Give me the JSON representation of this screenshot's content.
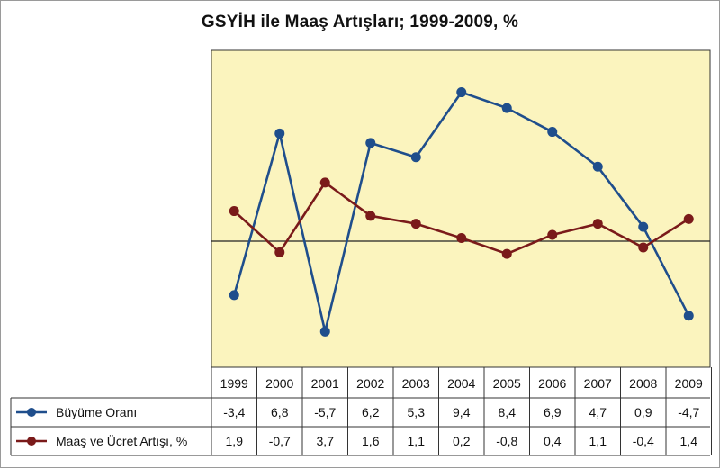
{
  "chart_data": {
    "type": "line",
    "title": "GSYİH ile Maaş Artışları; 1999-2009, %",
    "categories": [
      "1999",
      "2000",
      "2001",
      "2002",
      "2003",
      "2004",
      "2005",
      "2006",
      "2007",
      "2008",
      "2009"
    ],
    "series": [
      {
        "name": "Büyüme Oranı",
        "color": "#1f4e8c",
        "values": [
          -3.4,
          6.8,
          -5.7,
          6.2,
          5.3,
          9.4,
          8.4,
          6.9,
          4.7,
          0.9,
          -4.7
        ]
      },
      {
        "name": "Maaş ve Ücret Artışı, %",
        "color": "#7a1a1a",
        "values": [
          1.9,
          -0.7,
          3.7,
          1.6,
          1.1,
          0.2,
          -0.8,
          0.4,
          1.1,
          -0.4,
          1.4
        ]
      }
    ],
    "data_table": [
      [
        "-3,4",
        "6,8",
        "-5,7",
        "6,2",
        "5,3",
        "9,4",
        "8,4",
        "6,9",
        "4,7",
        "0,9",
        "-4,7"
      ],
      [
        "1,9",
        "-0,7",
        "3,7",
        "1,6",
        "1,1",
        "0,2",
        "-0,8",
        "0,4",
        "1,1",
        "-0,4",
        "1,4"
      ]
    ],
    "ylim": [
      -8,
      12
    ],
    "grid": false,
    "legend": "bottom data table",
    "plot_background": "#fbf4be",
    "zero_line": true
  }
}
